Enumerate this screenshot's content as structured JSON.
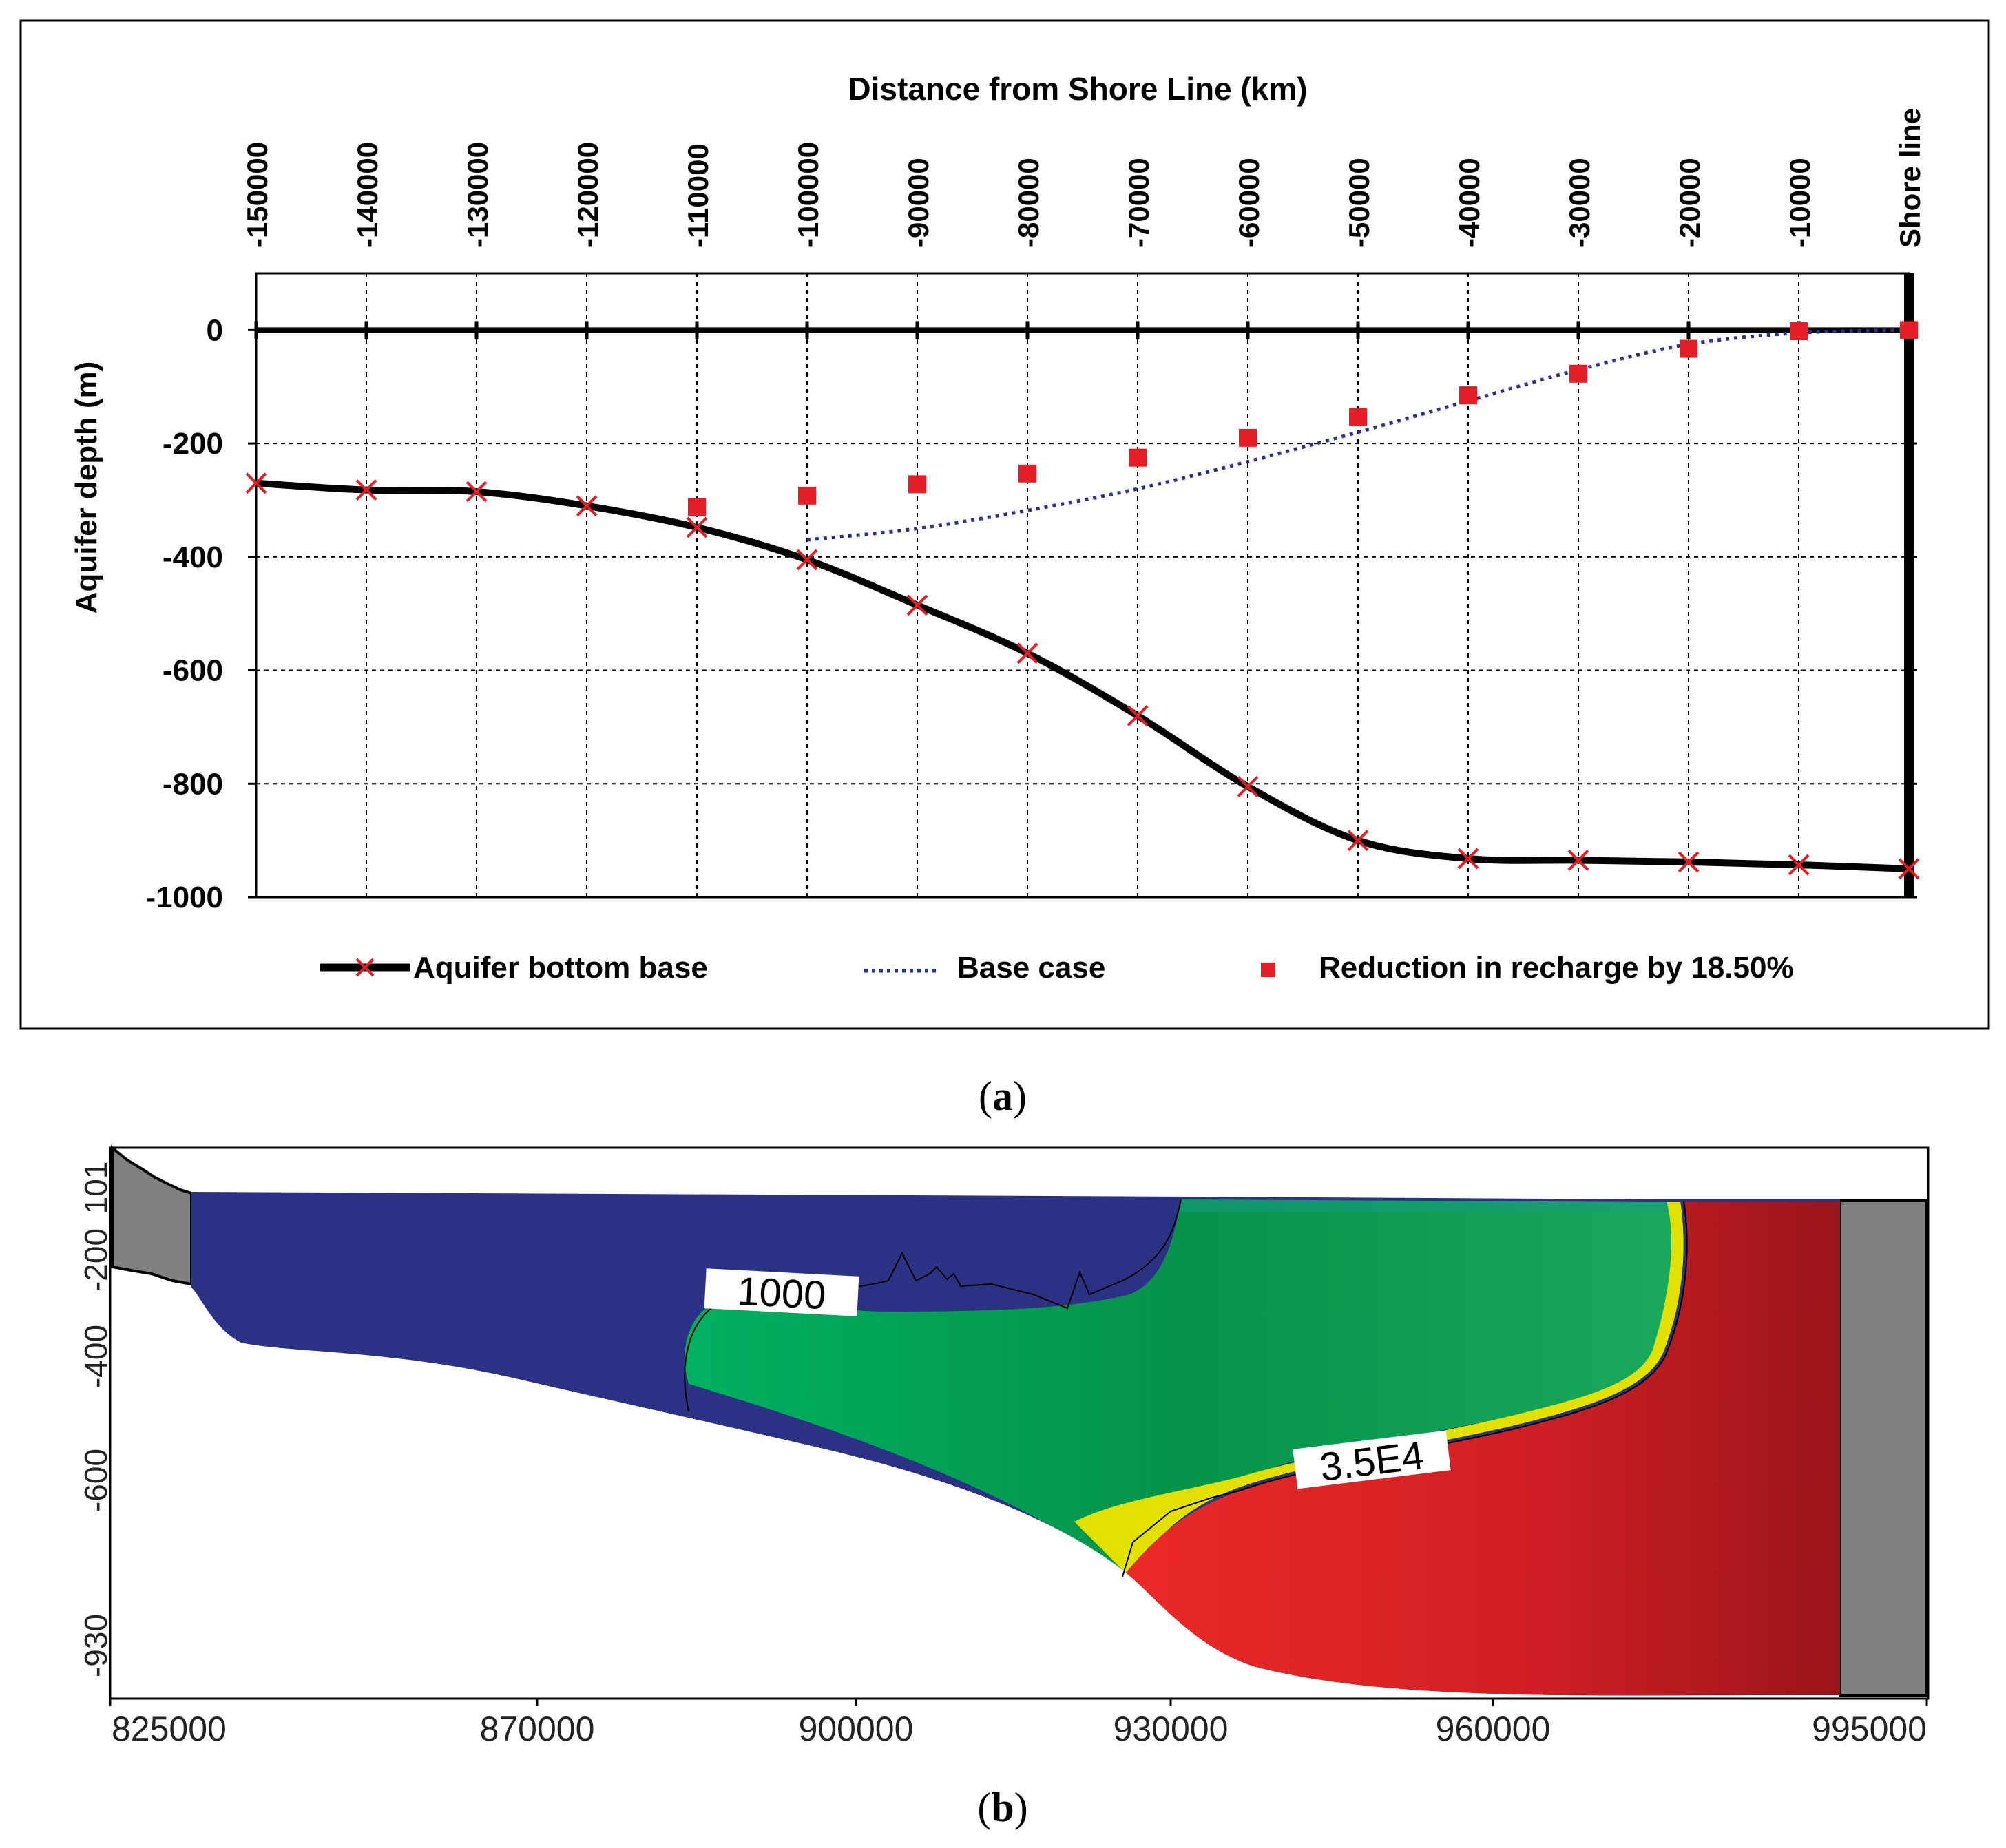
{
  "panel_a": {
    "caption_open": "(",
    "caption_letter": "a",
    "caption_close": ")"
  },
  "panel_b": {
    "caption_open": "(",
    "caption_letter": "b",
    "caption_close": ")",
    "x_ticks": [
      "825000",
      "870000",
      "900000",
      "930000",
      "960000",
      "995000"
    ],
    "y_ticks": [
      "101",
      "-200",
      "-400",
      "-600",
      "-930"
    ],
    "contours": [
      {
        "label": "1000",
        "color": "#ffffff"
      },
      {
        "label": "3.5E4",
        "color": "#ffffff"
      }
    ],
    "colors": {
      "fresh": "#2b3183",
      "mid": "#00a651",
      "saline": "#e41e26",
      "boundary": "#808080"
    }
  },
  "chart_data": {
    "type": "line",
    "title": "Distance from Shore Line (km)",
    "xlabel": "Distance from Shore Line (km)",
    "ylabel": "Aquifer depth (m)",
    "xlim": [
      -150000,
      0
    ],
    "ylim": [
      -1000,
      100
    ],
    "x_tick_values": [
      -150000,
      -140000,
      -130000,
      -120000,
      -110000,
      -100000,
      -90000,
      -80000,
      -70000,
      -60000,
      -50000,
      -40000,
      -30000,
      -20000,
      -10000,
      0
    ],
    "x_tick_labels": [
      "-150000",
      "-140000",
      "-130000",
      "-120000",
      "-110000",
      "-100000",
      "-90000",
      "-80000",
      "-70000",
      "-60000",
      "-50000",
      "-40000",
      "-30000",
      "-20000",
      "-10000",
      "Shore line"
    ],
    "y_tick_values": [
      0,
      -200,
      -400,
      -600,
      -800,
      -1000
    ],
    "y_tick_labels": [
      "0",
      "-200",
      "-400",
      "-600",
      "-800",
      "-1000"
    ],
    "grid": true,
    "legend_position": "bottom",
    "series": [
      {
        "name": "Aquifer bottom base",
        "style": "solid-line-with-x-markers",
        "color": "#000000",
        "marker_color": "#e41e26",
        "x": [
          -150000,
          -140000,
          -130000,
          -120000,
          -110000,
          -100000,
          -90000,
          -80000,
          -70000,
          -60000,
          -50000,
          -40000,
          -30000,
          -20000,
          -10000,
          0
        ],
        "y": [
          -270,
          -282,
          -285,
          -310,
          -348,
          -405,
          -485,
          -570,
          -680,
          -805,
          -900,
          -932,
          -935,
          -938,
          -943,
          -950
        ]
      },
      {
        "name": "Base case",
        "style": "dotted-line",
        "color": "#2b3183",
        "x": [
          -100000,
          -90000,
          -80000,
          -70000,
          -60000,
          -50000,
          -40000,
          -30000,
          -20000,
          -10000,
          0
        ],
        "y": [
          -370,
          -350,
          -318,
          -280,
          -232,
          -180,
          -125,
          -70,
          -25,
          -5,
          0
        ]
      },
      {
        "name": "Reduction in recharge by 18.50%",
        "style": "square-markers",
        "color": "#e41e26",
        "x": [
          -110000,
          -100000,
          -90000,
          -80000,
          -70000,
          -60000,
          -50000,
          -40000,
          -30000,
          -20000,
          -10000,
          0
        ],
        "y": [
          -312,
          -292,
          -272,
          -253,
          -225,
          -190,
          -153,
          -115,
          -77,
          -33,
          -2,
          0
        ]
      }
    ]
  }
}
